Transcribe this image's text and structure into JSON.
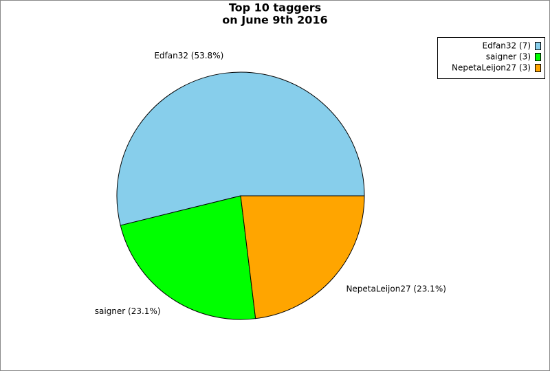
{
  "chart_data": {
    "type": "pie",
    "title": "Top 10 taggers",
    "subtitle": "on June 9th 2016",
    "values": [
      7,
      3,
      3
    ],
    "value_labels": [
      "Edfan32 (53.8%)",
      "saigner (23.1%)",
      "NepetaLeijon27 (23.1%)"
    ],
    "legend_labels": [
      "Edfan32 (7)",
      "saigner (3)",
      "NepetaLeijon27 (3)"
    ],
    "colors": [
      "#87ceeb",
      "#00ff00",
      "#ffa500"
    ],
    "legend": "top-right"
  }
}
